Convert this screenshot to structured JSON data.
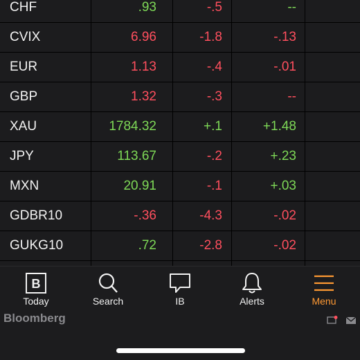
{
  "rows": [
    {
      "name": "CHF",
      "last": ".93",
      "c1": "-.5",
      "c2": "--"
    },
    {
      "name": "CVIX",
      "last": "6.96",
      "c1": "-1.8",
      "c2": "-.13"
    },
    {
      "name": "EUR",
      "last": "1.13",
      "c1": "-.4",
      "c2": "-.01"
    },
    {
      "name": "GBP",
      "last": "1.32",
      "c1": "-.3",
      "c2": "--"
    },
    {
      "name": "XAU",
      "last": "1784.32",
      "c1": "+.1",
      "c2": "+1.48"
    },
    {
      "name": "JPY",
      "last": "113.67",
      "c1": "-.2",
      "c2": "+.23"
    },
    {
      "name": "MXN",
      "last": "20.91",
      "c1": "-.1",
      "c2": "+.03"
    },
    {
      "name": "GDBR10",
      "last": "-.36",
      "c1": "-4.3",
      "c2": "-.02"
    },
    {
      "name": "GUKG10",
      "last": ".72",
      "c1": "-2.8",
      "c2": "-.02"
    }
  ],
  "colors": {
    "positive": "#7ed957",
    "negative": "#ff4f5e",
    "accent": "#ff9933"
  },
  "tabs": {
    "today": "Today",
    "search": "Search",
    "ib": "IB",
    "alerts": "Alerts",
    "menu": "Menu"
  },
  "footer": {
    "brand": "Bloomberg"
  }
}
